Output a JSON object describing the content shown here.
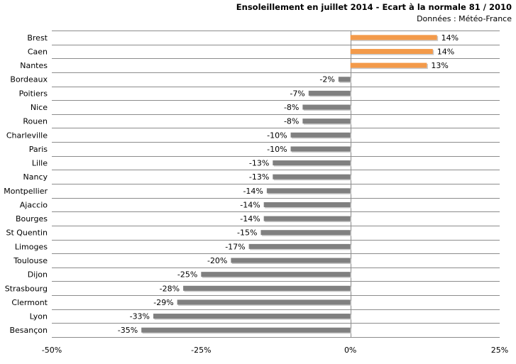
{
  "chart_data": {
    "type": "bar",
    "orientation": "horizontal",
    "title": "Ensoleillement en juillet 2014 - Ecart à la normale 81 / 2010",
    "subtitle": "Données : Météo-France",
    "xlim": [
      -50,
      25
    ],
    "xticks": [
      -50,
      -25,
      0,
      25
    ],
    "xtick_labels": [
      "-50%",
      "-25%",
      "0%",
      "25%"
    ],
    "grid": true,
    "colors": {
      "positive": "#f39a4a",
      "negative": "#808080"
    },
    "categories": [
      "Brest",
      "Caen",
      "Nantes",
      "Bordeaux",
      "Poitiers",
      "Nice",
      "Rouen",
      "Charleville",
      "Paris",
      "Lille",
      "Nancy",
      "Montpellier",
      "Ajaccio",
      "Bourges",
      "St Quentin",
      "Limoges",
      "Toulouse",
      "Dijon",
      "Strasbourg",
      "Clermont",
      "Lyon",
      "Besançon"
    ],
    "values": [
      14.5,
      13.8,
      12.8,
      -2,
      -7,
      -8,
      -8,
      -10,
      -10,
      -13,
      -13,
      -14,
      -14.5,
      -14.5,
      -15,
      -17,
      -20,
      -25,
      -28,
      -29,
      -33,
      -35
    ],
    "value_labels": [
      "14%",
      "14%",
      "13%",
      "-2%",
      "-7%",
      "-8%",
      "-8%",
      "-10%",
      "-10%",
      "-13%",
      "-13%",
      "-14%",
      "-14%",
      "-14%",
      "-15%",
      "-17%",
      "-20%",
      "-25%",
      "-28%",
      "-29%",
      "-33%",
      "-35%"
    ]
  }
}
